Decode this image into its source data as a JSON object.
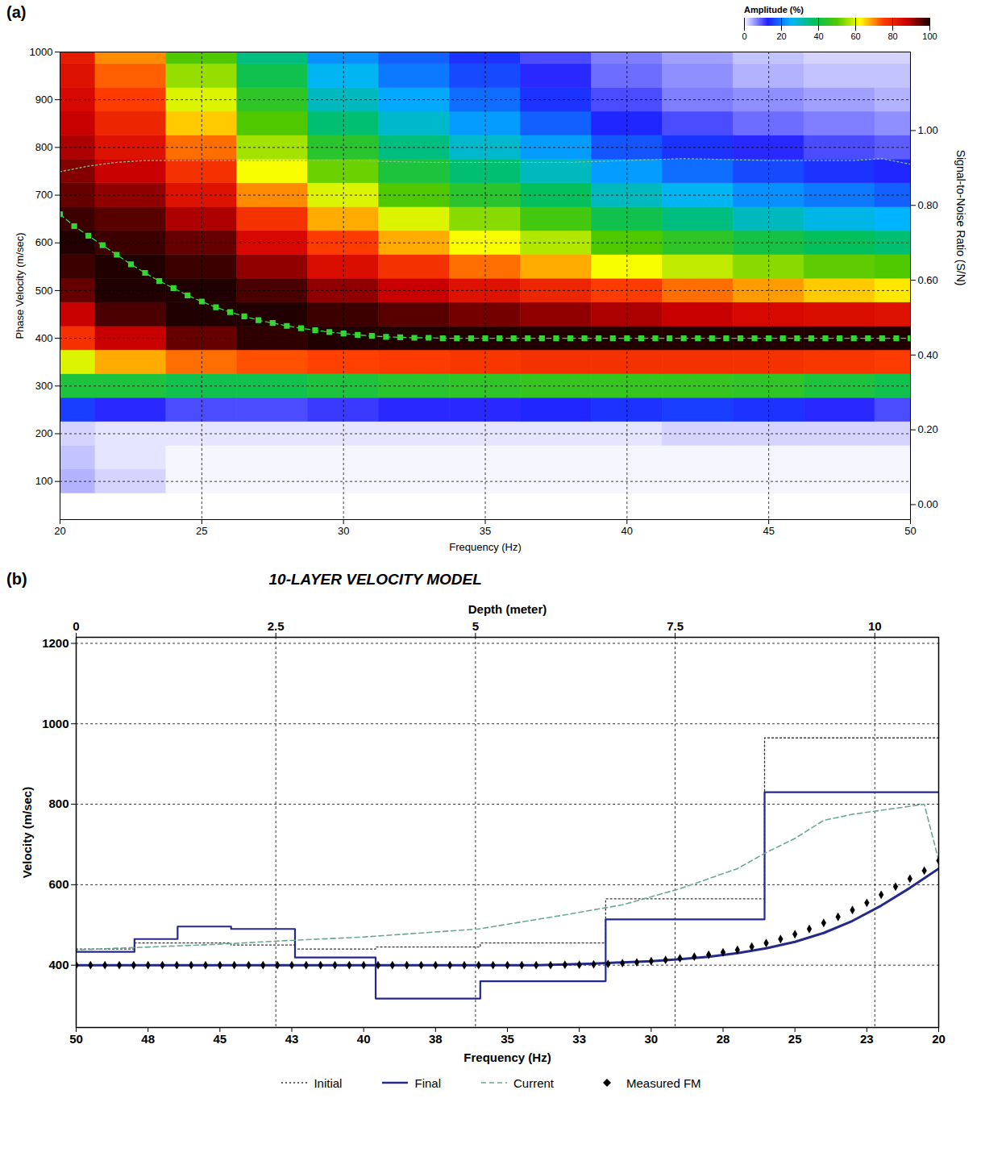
{
  "chart_data": [
    {
      "panel_label": "(a)",
      "type": "heatmap",
      "x_label": "Frequency (Hz)",
      "y_label": "Phase Velocity (m/sec)",
      "y2_label": "Signal-to-Noise Ratio (S/N)",
      "xlim": [
        20,
        50
      ],
      "xticks": [
        20,
        25,
        30,
        35,
        40,
        45,
        50
      ],
      "ylim": [
        20,
        1000
      ],
      "yticks": [
        100,
        200,
        300,
        400,
        500,
        600,
        700,
        800,
        900,
        1000
      ],
      "y2lim": [
        -0.04,
        1.21
      ],
      "y2ticks": [
        {
          "value": 0,
          "label": "0.00"
        },
        {
          "value": 0.2,
          "label": "0.20"
        },
        {
          "value": 0.4,
          "label": "0.40"
        },
        {
          "value": 0.6,
          "label": "0.60"
        },
        {
          "value": 0.8,
          "label": "0.80"
        },
        {
          "value": 1,
          "label": "1.00"
        }
      ],
      "grid": true,
      "heatmap": {
        "x": [
          20,
          22.5,
          25,
          27.5,
          30,
          32.5,
          35,
          37.5,
          40,
          42.5,
          45,
          47.5,
          50
        ],
        "y": [
          100,
          150,
          200,
          250,
          300,
          350,
          400,
          450,
          500,
          550,
          600,
          650,
          700,
          750,
          800,
          850,
          900,
          950,
          1000
        ],
        "values": [
          [
            4,
            2,
            0,
            0,
            0,
            0,
            0,
            0,
            0,
            0,
            0,
            0,
            0
          ],
          [
            3,
            1,
            0,
            0,
            0,
            0,
            0,
            0,
            0,
            0,
            0,
            0,
            0
          ],
          [
            2,
            1,
            1,
            1,
            1,
            1,
            1,
            1,
            1,
            2,
            2,
            2,
            2
          ],
          [
            15,
            12,
            10,
            10,
            11,
            12,
            12,
            13,
            14,
            15,
            14,
            12,
            10
          ],
          [
            42,
            42,
            40,
            40,
            42,
            44,
            45,
            46,
            46,
            46,
            45,
            42,
            40
          ],
          [
            60,
            68,
            72,
            74,
            75,
            76,
            77,
            78,
            78,
            78,
            78,
            77,
            76
          ],
          [
            78,
            88,
            95,
            99,
            100,
            100,
            100,
            100,
            100,
            100,
            100,
            100,
            100
          ],
          [
            88,
            97,
            100,
            100,
            98,
            96,
            94,
            92,
            90,
            88,
            86,
            85,
            84
          ],
          [
            95,
            100,
            100,
            97,
            92,
            88,
            84,
            80,
            76,
            72,
            69,
            66,
            64
          ],
          [
            98,
            100,
            98,
            92,
            85,
            78,
            72,
            68,
            62,
            58,
            54,
            51,
            50
          ],
          [
            100,
            98,
            95,
            86,
            76,
            68,
            62,
            57,
            50,
            45,
            41,
            38,
            36
          ],
          [
            98,
            96,
            90,
            78,
            68,
            60,
            54,
            48,
            40,
            35,
            30,
            27,
            25
          ],
          [
            95,
            92,
            84,
            70,
            60,
            50,
            44,
            38,
            30,
            26,
            22,
            20,
            18
          ],
          [
            93,
            88,
            78,
            62,
            52,
            42,
            36,
            30,
            23,
            19,
            16,
            14,
            13
          ],
          [
            90,
            84,
            72,
            56,
            44,
            35,
            29,
            23,
            17,
            14,
            12,
            10,
            9
          ],
          [
            88,
            80,
            66,
            50,
            36,
            29,
            23,
            18,
            13,
            10,
            8,
            7,
            6
          ],
          [
            86,
            76,
            60,
            45,
            30,
            24,
            19,
            14,
            10,
            7,
            6,
            5,
            4
          ],
          [
            84,
            73,
            55,
            40,
            26,
            20,
            16,
            12,
            8,
            6,
            4,
            3,
            3
          ],
          [
            82,
            70,
            50,
            35,
            22,
            18,
            14,
            10,
            7,
            5,
            3,
            2,
            2
          ]
        ],
        "color_range": [
          0,
          100
        ],
        "color_ticks": [
          0,
          20,
          40,
          60,
          80,
          100
        ],
        "color_label": "Amplitude (%)"
      },
      "series": [
        {
          "type": "line",
          "marker": "square",
          "line_style": "dashed",
          "color": "#33d633",
          "x": [
            20,
            20.5,
            21,
            21.5,
            22,
            22.5,
            23,
            23.5,
            24,
            24.5,
            25,
            25.5,
            26,
            26.5,
            27,
            27.5,
            28,
            28.5,
            29,
            29.5,
            30,
            30.5,
            31,
            31.5,
            32,
            32.5,
            33,
            33.5,
            34,
            34.5,
            35,
            35.5,
            36,
            36.5,
            37,
            37.5,
            38,
            38.5,
            39,
            39.5,
            40,
            40.5,
            41,
            41.5,
            42,
            42.5,
            43,
            43.5,
            44,
            44.5,
            45,
            45.5,
            46,
            46.5,
            47,
            47.5,
            48,
            48.5,
            49,
            49.5,
            50
          ],
          "values": [
            660,
            635,
            615,
            595,
            575,
            555,
            537,
            520,
            505,
            490,
            477,
            465,
            455,
            446,
            438,
            432,
            426,
            421,
            417,
            413,
            410,
            407,
            405,
            403,
            402,
            401,
            401,
            400,
            400,
            400,
            400,
            400,
            400,
            400,
            400,
            400,
            400,
            400,
            400,
            400,
            400,
            400,
            400,
            400,
            400,
            400,
            400,
            400,
            400,
            400,
            400,
            400,
            400,
            400,
            400,
            400,
            400,
            400,
            400,
            400,
            400
          ]
        },
        {
          "type": "line",
          "axis": "y2",
          "line_style": "dotted",
          "color": "#7fbf95",
          "x": [
            20,
            21,
            22,
            23,
            25,
            28,
            30,
            33,
            35,
            38,
            40,
            42,
            45,
            48,
            49,
            50
          ],
          "values": [
            0.89,
            0.905,
            0.915,
            0.92,
            0.92,
            0.92,
            0.92,
            0.915,
            0.915,
            0.915,
            0.92,
            0.925,
            0.92,
            0.92,
            0.925,
            0.91
          ]
        }
      ]
    },
    {
      "panel_label": "(b)",
      "type": "step",
      "title": "10-LAYER VELOCITY MODEL",
      "x_label": "Depth (meter)",
      "x2_label": "Frequency (Hz)",
      "y_label": "Velocity (m/sec)",
      "xlim": [
        0,
        10.8
      ],
      "xticks": [
        0,
        2.5,
        5,
        7.5,
        10
      ],
      "x2lim": [
        50,
        20
      ],
      "x2ticks": [
        50,
        {
          "value": 47.5,
          "label": "48"
        },
        45,
        {
          "value": 42.5,
          "label": "43"
        },
        40,
        {
          "value": 37.5,
          "label": "38"
        },
        35,
        {
          "value": 32.5,
          "label": "33"
        },
        30,
        {
          "value": 27.5,
          "label": "28"
        },
        25,
        {
          "value": 22.5,
          "label": "23"
        },
        20
      ],
      "ylim": [
        245,
        1215
      ],
      "yticks": [
        400,
        600,
        800,
        1000,
        1200
      ],
      "grid": true,
      "legend": "bottom",
      "series": [
        {
          "name": "Initial",
          "type": "step",
          "line_style": "dotted",
          "color": "#333333",
          "x": [
            0,
            0.73,
            1.94,
            2.74,
            3.75,
            5.06,
            6.63,
            8.62
          ],
          "values": [
            440,
            455,
            450,
            440,
            445,
            455,
            565,
            965
          ]
        },
        {
          "name": "Final",
          "type": "step",
          "line_style": "solid",
          "color": "#252a8a",
          "x": [
            0,
            0.73,
            1.27,
            1.94,
            2.74,
            3.75,
            5.06,
            6.63,
            8.62
          ],
          "values": [
            433,
            465,
            496,
            490,
            419,
            317,
            360,
            514,
            830
          ]
        },
        {
          "name": "Current",
          "type": "line",
          "axis": "x2",
          "line_style": "dashed",
          "color": "#6aa88f",
          "x": [
            20,
            20.5,
            21,
            22,
            23,
            24,
            25,
            26,
            27,
            29,
            31,
            33,
            36,
            40,
            43,
            45,
            50
          ],
          "values": [
            660,
            800,
            795,
            785,
            775,
            760,
            715,
            680,
            640,
            590,
            550,
            525,
            490,
            470,
            460,
            452,
            438
          ]
        },
        {
          "name": "Final",
          "type": "line",
          "axis": "x2",
          "line_style": "solid",
          "color": "#252a8a",
          "x": [
            20,
            21,
            22,
            23,
            24,
            25,
            26,
            27,
            28,
            29,
            30,
            31,
            32,
            33,
            34,
            35,
            36,
            37,
            38,
            39,
            40,
            41,
            42,
            43,
            44,
            45,
            46,
            47,
            48,
            49,
            50
          ],
          "values": [
            640,
            592,
            548,
            510,
            480,
            458,
            442,
            430,
            421,
            415,
            410,
            407,
            404,
            402,
            400,
            400,
            400,
            400,
            400,
            400,
            400,
            400,
            400,
            400,
            400,
            400,
            400,
            400,
            400,
            400,
            400
          ]
        },
        {
          "name": "Measured FM",
          "type": "scatter",
          "axis": "x2",
          "marker": "diamond",
          "color": "#000000",
          "x": [
            20,
            20.5,
            21,
            21.5,
            22,
            22.5,
            23,
            23.5,
            24,
            24.5,
            25,
            25.5,
            26,
            26.5,
            27,
            27.5,
            28,
            28.5,
            29,
            29.5,
            30,
            30.5,
            31,
            31.5,
            32,
            32.5,
            33,
            33.5,
            34,
            34.5,
            35,
            35.5,
            36,
            36.5,
            37,
            37.5,
            38,
            38.5,
            39,
            39.5,
            40,
            40.5,
            41,
            41.5,
            42,
            42.5,
            43,
            43.5,
            44,
            44.5,
            45,
            45.5,
            46,
            46.5,
            47,
            47.5,
            48,
            48.5,
            49,
            49.5,
            50
          ],
          "values": [
            660,
            635,
            615,
            595,
            575,
            555,
            537,
            520,
            505,
            490,
            477,
            465,
            455,
            446,
            438,
            432,
            426,
            421,
            417,
            413,
            410,
            407,
            405,
            403,
            402,
            401,
            401,
            400,
            400,
            400,
            400,
            400,
            400,
            400,
            400,
            400,
            400,
            400,
            400,
            400,
            400,
            400,
            400,
            400,
            400,
            400,
            400,
            400,
            400,
            400,
            400,
            400,
            400,
            400,
            400,
            400,
            400,
            400,
            400,
            400,
            400
          ]
        }
      ]
    }
  ]
}
